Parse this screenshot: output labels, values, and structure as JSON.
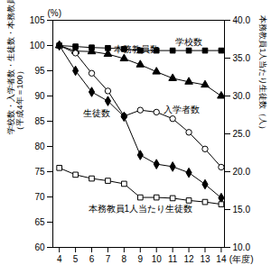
{
  "chart_data": {
    "type": "line",
    "y_label": "学校数・入学者数・生徒数・本務教員数（平成4年＝100）",
    "y2_label": "本務教員1人当たり生徒数（人）",
    "x_label": "(年度)",
    "annotations": [
      "(%)"
    ],
    "x": [
      4,
      5,
      6,
      7,
      8,
      9,
      10,
      11,
      12,
      13,
      14
    ],
    "xlim": [
      3.6,
      14.2
    ],
    "xticks": [
      4,
      5,
      6,
      7,
      8,
      9,
      10,
      11,
      12,
      13,
      14
    ],
    "ylim": [
      60,
      105
    ],
    "yticks": [
      60,
      65,
      70,
      75,
      80,
      85,
      90,
      95,
      100,
      105
    ],
    "y2lim": [
      10,
      40
    ],
    "y2ticks": [
      {
        "value": 10,
        "label": "10.0"
      },
      {
        "value": 15,
        "label": "15.0"
      },
      {
        "value": 20,
        "label": "20.0"
      },
      {
        "value": 25,
        "label": "25.0"
      },
      {
        "value": 30,
        "label": "30.0"
      },
      {
        "value": 35,
        "label": "35.0"
      },
      {
        "value": 40,
        "label": "40.0"
      }
    ],
    "grid": false,
    "series": [
      {
        "name": "学校数",
        "color": "#000000",
        "marker": "square",
        "values": [
          100,
          99.8,
          99.6,
          99.5,
          99.3,
          99.0,
          99.0,
          99.0,
          99.0,
          99.0,
          99.0
        ]
      },
      {
        "name": "本務教員数",
        "color": "#000000",
        "marker": "triangle",
        "values": [
          100,
          98.9,
          98.8,
          98.3,
          97.4,
          96.2,
          94.8,
          93.5,
          92.8,
          92.2,
          90.0
        ]
      },
      {
        "name": "入学者数",
        "color": "#000000",
        "marker": "circle-open",
        "values": [
          100,
          98.5,
          94.5,
          91.0,
          86.0,
          87.2,
          86.8,
          85.5,
          82.8,
          79.5,
          75.9
        ]
      },
      {
        "name": "生徒数",
        "color": "#000000",
        "marker": "diamond",
        "values": [
          100,
          95.0,
          90.8,
          89.0,
          85.9,
          78.3,
          76.5,
          76.0,
          74.8,
          72.5,
          69.8
        ]
      },
      {
        "name": "本務教員1人当たり生徒数",
        "color": "#000000",
        "marker": "square-open",
        "axis": "y2",
        "values": [
          20.5,
          19.6,
          19.1,
          18.8,
          18.4,
          16.6,
          16.6,
          16.5,
          16.2,
          16.0,
          15.7
        ]
      }
    ]
  }
}
